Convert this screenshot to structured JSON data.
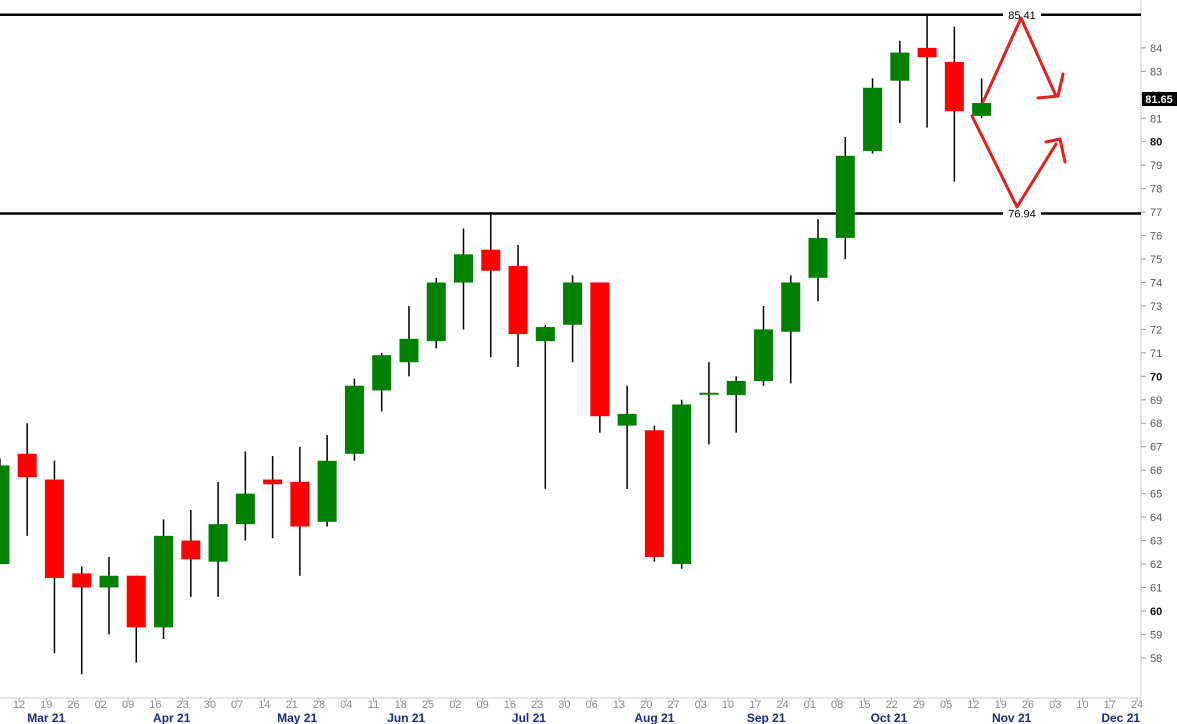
{
  "chart_data": {
    "type": "candlestick",
    "title": "",
    "xlabel": "",
    "ylabel": "",
    "ylim": [
      56.8,
      85.7
    ],
    "last_price": "81.65",
    "grid": false,
    "colors": {
      "up": "#008000",
      "down": "#ff0000",
      "annotation": "#e32020",
      "line": "#000000"
    },
    "horizontal_lines": [
      {
        "value": 85.41,
        "label": "85.41"
      },
      {
        "value": 76.94,
        "label": "76.94"
      }
    ],
    "y_ticks": [
      58,
      59,
      60,
      61,
      62,
      63,
      64,
      65,
      66,
      67,
      68,
      69,
      70,
      71,
      72,
      73,
      74,
      75,
      76,
      77,
      78,
      79,
      80,
      81,
      82,
      83,
      84
    ],
    "y_major_ticks": [
      60,
      70,
      80
    ],
    "x_day_ticks": [
      "12",
      "19",
      "26",
      "02",
      "09",
      "16",
      "23",
      "30",
      "07",
      "14",
      "21",
      "28",
      "04",
      "11",
      "18",
      "25",
      "02",
      "09",
      "16",
      "23",
      "30",
      "06",
      "13",
      "20",
      "27",
      "03",
      "10",
      "17",
      "24",
      "01",
      "08",
      "15",
      "22",
      "29",
      "05",
      "12",
      "19",
      "26",
      "03",
      "10",
      "17",
      "24"
    ],
    "months": [
      {
        "label": "Mar 21",
        "slot": 1
      },
      {
        "label": "Apr 21",
        "slot": 5.6
      },
      {
        "label": "May 21",
        "slot": 10.2
      },
      {
        "label": "Jun 21",
        "slot": 14.2
      },
      {
        "label": "Jul 21",
        "slot": 18.7
      },
      {
        "label": "Aug 21",
        "slot": 23.3
      },
      {
        "label": "Sep 21",
        "slot": 27.4
      },
      {
        "label": "Oct 21",
        "slot": 31.9
      },
      {
        "label": "Nov 21",
        "slot": 36.4
      },
      {
        "label": "Dec 21",
        "slot": 40.4
      }
    ],
    "candles": [
      {
        "date": "Mar 05",
        "open": 62.0,
        "high": 66.5,
        "low": 62.0,
        "close": 66.2
      },
      {
        "date": "Mar 12",
        "open": 66.7,
        "high": 68.0,
        "low": 63.2,
        "close": 65.7
      },
      {
        "date": "Mar 19",
        "open": 65.6,
        "high": 66.4,
        "low": 58.2,
        "close": 61.4
      },
      {
        "date": "Mar 26",
        "open": 61.6,
        "high": 61.9,
        "low": 57.3,
        "close": 61.0
      },
      {
        "date": "Apr 02",
        "open": 61.0,
        "high": 62.3,
        "low": 59.0,
        "close": 61.5
      },
      {
        "date": "Apr 09",
        "open": 61.5,
        "high": 61.5,
        "low": 57.8,
        "close": 59.3
      },
      {
        "date": "Apr 16",
        "open": 59.3,
        "high": 63.9,
        "low": 58.8,
        "close": 63.2
      },
      {
        "date": "Apr 23",
        "open": 63.0,
        "high": 64.3,
        "low": 60.6,
        "close": 62.2
      },
      {
        "date": "Apr 30",
        "open": 62.1,
        "high": 65.5,
        "low": 60.6,
        "close": 63.7
      },
      {
        "date": "May 07",
        "open": 63.7,
        "high": 66.8,
        "low": 63.0,
        "close": 65.0
      },
      {
        "date": "May 14",
        "open": 65.6,
        "high": 66.6,
        "low": 63.1,
        "close": 65.4
      },
      {
        "date": "May 21",
        "open": 65.5,
        "high": 67.0,
        "low": 61.5,
        "close": 63.6
      },
      {
        "date": "May 28",
        "open": 63.8,
        "high": 67.5,
        "low": 63.6,
        "close": 66.4
      },
      {
        "date": "Jun 04",
        "open": 66.7,
        "high": 69.9,
        "low": 66.4,
        "close": 69.6
      },
      {
        "date": "Jun 11",
        "open": 69.4,
        "high": 71.0,
        "low": 68.5,
        "close": 70.9
      },
      {
        "date": "Jun 18",
        "open": 70.6,
        "high": 73.0,
        "low": 70.0,
        "close": 71.6
      },
      {
        "date": "Jun 25",
        "open": 71.5,
        "high": 74.2,
        "low": 71.2,
        "close": 74.0
      },
      {
        "date": "Jul 02",
        "open": 74.0,
        "high": 76.3,
        "low": 72.0,
        "close": 75.2
      },
      {
        "date": "Jul 09",
        "open": 75.4,
        "high": 77.0,
        "low": 70.8,
        "close": 74.5
      },
      {
        "date": "Jul 16",
        "open": 74.7,
        "high": 75.6,
        "low": 70.4,
        "close": 71.8
      },
      {
        "date": "Jul 23",
        "open": 71.5,
        "high": 72.2,
        "low": 65.2,
        "close": 72.1
      },
      {
        "date": "Jul 30",
        "open": 72.2,
        "high": 74.3,
        "low": 70.6,
        "close": 74.0
      },
      {
        "date": "Aug 06",
        "open": 74.0,
        "high": 74.0,
        "low": 67.6,
        "close": 68.3
      },
      {
        "date": "Aug 13",
        "open": 67.9,
        "high": 69.6,
        "low": 65.2,
        "close": 68.4
      },
      {
        "date": "Aug 20",
        "open": 67.7,
        "high": 67.9,
        "low": 62.1,
        "close": 62.3
      },
      {
        "date": "Aug 27",
        "open": 62.0,
        "high": 69.0,
        "low": 61.8,
        "close": 68.8
      },
      {
        "date": "Sep 03",
        "open": 69.3,
        "high": 70.6,
        "low": 67.1,
        "close": 69.3
      },
      {
        "date": "Sep 10",
        "open": 69.2,
        "high": 70.0,
        "low": 67.6,
        "close": 69.8
      },
      {
        "date": "Sep 17",
        "open": 69.8,
        "high": 73.0,
        "low": 69.6,
        "close": 72.0
      },
      {
        "date": "Sep 24",
        "open": 71.9,
        "high": 74.3,
        "low": 69.7,
        "close": 74.0
      },
      {
        "date": "Oct 01",
        "open": 74.2,
        "high": 76.7,
        "low": 73.2,
        "close": 75.9
      },
      {
        "date": "Oct 08",
        "open": 75.9,
        "high": 80.2,
        "low": 75.0,
        "close": 79.4
      },
      {
        "date": "Oct 15",
        "open": 79.6,
        "high": 82.7,
        "low": 79.5,
        "close": 82.3
      },
      {
        "date": "Oct 22",
        "open": 82.6,
        "high": 84.3,
        "low": 80.8,
        "close": 83.8
      },
      {
        "date": "Oct 29",
        "open": 84.0,
        "high": 85.41,
        "low": 80.6,
        "close": 83.6
      },
      {
        "date": "Nov 05",
        "open": 83.4,
        "high": 84.9,
        "low": 78.3,
        "close": 81.3
      },
      {
        "date": "Nov 12",
        "open": 81.1,
        "high": 82.7,
        "low": 81.0,
        "close": 81.65
      }
    ]
  }
}
